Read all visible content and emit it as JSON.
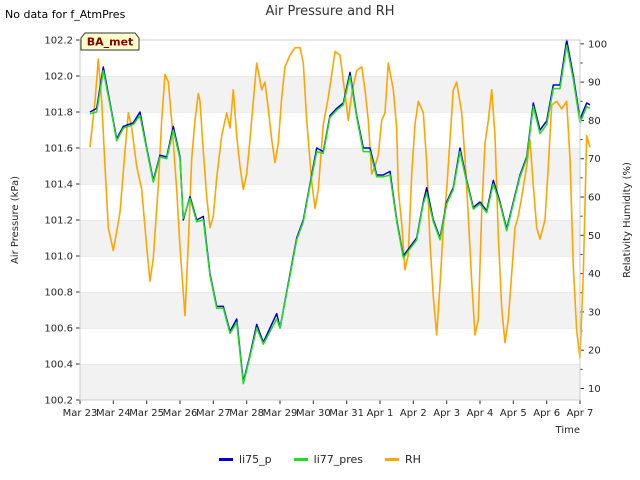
{
  "header": {
    "nodata_text": "No data for f_AtmPres"
  },
  "chart_data": {
    "type": "line",
    "title": "Air Pressure and RH",
    "badge": "BA_met",
    "xlabel": "Time",
    "ylabel_left": "Air Pressure (kPa)",
    "ylabel_right": "Relativity Humidity (%)",
    "x_ticks": [
      "Mar 23",
      "Mar 24",
      "Mar 25",
      "Mar 26",
      "Mar 27",
      "Mar 28",
      "Mar 29",
      "Mar 30",
      "Mar 31",
      "Apr 1",
      "Apr 2",
      "Apr 3",
      "Apr 4",
      "Apr 5",
      "Apr 6",
      "Apr 7"
    ],
    "x_range_days": [
      0,
      15
    ],
    "ylim_left": [
      100.2,
      102.2
    ],
    "yticks_left": [
      "100.2",
      "100.4",
      "100.6",
      "100.8",
      "101.0",
      "101.2",
      "101.4",
      "101.6",
      "101.8",
      "102.0",
      "102.2"
    ],
    "ylim_right": [
      7,
      101
    ],
    "yticks_right": [
      "10",
      "20",
      "30",
      "40",
      "50",
      "60",
      "70",
      "80",
      "90",
      "100"
    ],
    "grid": "horizontal bands",
    "legend_position": "bottom-center",
    "series": [
      {
        "name": "li75_p",
        "axis": "left",
        "color": "#0000cc",
        "points": [
          [
            0.3,
            101.8
          ],
          [
            0.5,
            101.82
          ],
          [
            0.7,
            102.05
          ],
          [
            0.9,
            101.85
          ],
          [
            1.1,
            101.65
          ],
          [
            1.3,
            101.72
          ],
          [
            1.6,
            101.74
          ],
          [
            1.8,
            101.8
          ],
          [
            2.0,
            101.6
          ],
          [
            2.2,
            101.42
          ],
          [
            2.4,
            101.56
          ],
          [
            2.6,
            101.55
          ],
          [
            2.8,
            101.72
          ],
          [
            3.0,
            101.55
          ],
          [
            3.1,
            101.2
          ],
          [
            3.3,
            101.33
          ],
          [
            3.5,
            101.2
          ],
          [
            3.7,
            101.22
          ],
          [
            3.9,
            100.9
          ],
          [
            4.1,
            100.72
          ],
          [
            4.3,
            100.72
          ],
          [
            4.5,
            100.58
          ],
          [
            4.7,
            100.65
          ],
          [
            4.9,
            100.3
          ],
          [
            5.1,
            100.45
          ],
          [
            5.3,
            100.62
          ],
          [
            5.5,
            100.52
          ],
          [
            5.7,
            100.6
          ],
          [
            5.9,
            100.68
          ],
          [
            6.0,
            100.6
          ],
          [
            6.3,
            100.9
          ],
          [
            6.5,
            101.1
          ],
          [
            6.7,
            101.2
          ],
          [
            6.9,
            101.4
          ],
          [
            7.1,
            101.6
          ],
          [
            7.3,
            101.58
          ],
          [
            7.5,
            101.78
          ],
          [
            7.7,
            101.82
          ],
          [
            7.9,
            101.85
          ],
          [
            8.1,
            102.02
          ],
          [
            8.3,
            101.78
          ],
          [
            8.5,
            101.6
          ],
          [
            8.7,
            101.6
          ],
          [
            8.9,
            101.45
          ],
          [
            9.1,
            101.45
          ],
          [
            9.3,
            101.47
          ],
          [
            9.5,
            101.2
          ],
          [
            9.7,
            101.0
          ],
          [
            9.9,
            101.05
          ],
          [
            10.1,
            101.1
          ],
          [
            10.3,
            101.3
          ],
          [
            10.4,
            101.38
          ],
          [
            10.6,
            101.2
          ],
          [
            10.8,
            101.1
          ],
          [
            11.0,
            101.3
          ],
          [
            11.2,
            101.38
          ],
          [
            11.4,
            101.6
          ],
          [
            11.6,
            101.42
          ],
          [
            11.8,
            101.27
          ],
          [
            12.0,
            101.3
          ],
          [
            12.2,
            101.25
          ],
          [
            12.4,
            101.42
          ],
          [
            12.6,
            101.3
          ],
          [
            12.8,
            101.15
          ],
          [
            13.0,
            101.3
          ],
          [
            13.2,
            101.45
          ],
          [
            13.4,
            101.55
          ],
          [
            13.6,
            101.85
          ],
          [
            13.8,
            101.7
          ],
          [
            14.0,
            101.75
          ],
          [
            14.2,
            101.95
          ],
          [
            14.4,
            101.95
          ],
          [
            14.6,
            102.2
          ],
          [
            14.8,
            102.0
          ],
          [
            15.0,
            101.76
          ],
          [
            15.2,
            101.85
          ],
          [
            15.3,
            101.84
          ]
        ]
      },
      {
        "name": "li77_pres",
        "axis": "left",
        "color": "#22dd22",
        "points": [
          [
            0.3,
            101.79
          ],
          [
            0.5,
            101.8
          ],
          [
            0.7,
            102.03
          ],
          [
            0.9,
            101.84
          ],
          [
            1.1,
            101.64
          ],
          [
            1.3,
            101.71
          ],
          [
            1.6,
            101.73
          ],
          [
            1.8,
            101.78
          ],
          [
            2.0,
            101.59
          ],
          [
            2.2,
            101.41
          ],
          [
            2.4,
            101.55
          ],
          [
            2.6,
            101.54
          ],
          [
            2.8,
            101.7
          ],
          [
            3.0,
            101.54
          ],
          [
            3.1,
            101.21
          ],
          [
            3.3,
            101.32
          ],
          [
            3.5,
            101.19
          ],
          [
            3.7,
            101.2
          ],
          [
            3.9,
            100.89
          ],
          [
            4.1,
            100.71
          ],
          [
            4.3,
            100.71
          ],
          [
            4.5,
            100.57
          ],
          [
            4.7,
            100.63
          ],
          [
            4.9,
            100.29
          ],
          [
            5.1,
            100.44
          ],
          [
            5.3,
            100.6
          ],
          [
            5.5,
            100.51
          ],
          [
            5.7,
            100.58
          ],
          [
            5.9,
            100.65
          ],
          [
            6.0,
            100.6
          ],
          [
            6.3,
            100.89
          ],
          [
            6.5,
            101.09
          ],
          [
            6.7,
            101.19
          ],
          [
            6.9,
            101.39
          ],
          [
            7.1,
            101.58
          ],
          [
            7.3,
            101.57
          ],
          [
            7.5,
            101.77
          ],
          [
            7.7,
            101.81
          ],
          [
            7.9,
            101.84
          ],
          [
            8.1,
            102.0
          ],
          [
            8.3,
            101.77
          ],
          [
            8.5,
            101.58
          ],
          [
            8.7,
            101.58
          ],
          [
            8.9,
            101.44
          ],
          [
            9.1,
            101.44
          ],
          [
            9.3,
            101.45
          ],
          [
            9.5,
            101.19
          ],
          [
            9.7,
            100.99
          ],
          [
            9.9,
            101.04
          ],
          [
            10.1,
            101.09
          ],
          [
            10.3,
            101.29
          ],
          [
            10.4,
            101.35
          ],
          [
            10.6,
            101.19
          ],
          [
            10.8,
            101.09
          ],
          [
            11.0,
            101.29
          ],
          [
            11.2,
            101.37
          ],
          [
            11.4,
            101.58
          ],
          [
            11.6,
            101.41
          ],
          [
            11.8,
            101.26
          ],
          [
            12.0,
            101.29
          ],
          [
            12.2,
            101.24
          ],
          [
            12.4,
            101.4
          ],
          [
            12.6,
            101.29
          ],
          [
            12.8,
            101.14
          ],
          [
            13.0,
            101.29
          ],
          [
            13.2,
            101.44
          ],
          [
            13.4,
            101.54
          ],
          [
            13.6,
            101.83
          ],
          [
            13.8,
            101.68
          ],
          [
            14.0,
            101.73
          ],
          [
            14.2,
            101.93
          ],
          [
            14.4,
            101.93
          ],
          [
            14.6,
            102.17
          ],
          [
            14.8,
            101.98
          ],
          [
            15.0,
            101.74
          ],
          [
            15.2,
            101.83
          ],
          [
            15.3,
            101.82
          ]
        ]
      },
      {
        "name": "RH",
        "axis": "right",
        "color": "#ffa500",
        "points": [
          [
            0.3,
            73
          ],
          [
            0.45,
            85
          ],
          [
            0.55,
            96
          ],
          [
            0.65,
            85
          ],
          [
            0.75,
            68
          ],
          [
            0.85,
            52
          ],
          [
            1.0,
            46
          ],
          [
            1.1,
            51
          ],
          [
            1.2,
            56
          ],
          [
            1.35,
            72
          ],
          [
            1.45,
            82
          ],
          [
            1.55,
            78
          ],
          [
            1.7,
            68
          ],
          [
            1.85,
            62
          ],
          [
            2.0,
            47
          ],
          [
            2.1,
            38
          ],
          [
            2.2,
            44
          ],
          [
            2.35,
            63
          ],
          [
            2.45,
            80
          ],
          [
            2.55,
            92
          ],
          [
            2.65,
            90
          ],
          [
            2.75,
            80
          ],
          [
            2.9,
            62
          ],
          [
            3.0,
            47
          ],
          [
            3.1,
            35
          ],
          [
            3.15,
            29
          ],
          [
            3.25,
            48
          ],
          [
            3.35,
            70
          ],
          [
            3.45,
            80
          ],
          [
            3.55,
            87
          ],
          [
            3.6,
            85
          ],
          [
            3.7,
            72
          ],
          [
            3.8,
            60
          ],
          [
            3.9,
            52
          ],
          [
            4.0,
            55
          ],
          [
            4.1,
            65
          ],
          [
            4.25,
            76
          ],
          [
            4.4,
            82
          ],
          [
            4.5,
            78
          ],
          [
            4.6,
            88
          ],
          [
            4.7,
            76
          ],
          [
            4.8,
            68
          ],
          [
            4.9,
            62
          ],
          [
            5.0,
            66
          ],
          [
            5.1,
            75
          ],
          [
            5.2,
            85
          ],
          [
            5.3,
            95
          ],
          [
            5.45,
            88
          ],
          [
            5.55,
            90
          ],
          [
            5.65,
            83
          ],
          [
            5.75,
            75
          ],
          [
            5.85,
            69
          ],
          [
            5.95,
            74
          ],
          [
            6.05,
            86
          ],
          [
            6.15,
            94
          ],
          [
            6.3,
            97
          ],
          [
            6.45,
            99
          ],
          [
            6.6,
            99
          ],
          [
            6.7,
            95
          ],
          [
            6.8,
            80
          ],
          [
            6.95,
            64
          ],
          [
            7.05,
            57
          ],
          [
            7.15,
            62
          ],
          [
            7.3,
            79
          ],
          [
            7.45,
            86
          ],
          [
            7.55,
            92
          ],
          [
            7.65,
            98
          ],
          [
            7.8,
            97
          ],
          [
            7.95,
            87
          ],
          [
            8.05,
            80
          ],
          [
            8.15,
            87
          ],
          [
            8.3,
            93
          ],
          [
            8.45,
            94
          ],
          [
            8.55,
            88
          ],
          [
            8.65,
            80
          ],
          [
            8.75,
            66
          ],
          [
            8.85,
            68
          ],
          [
            8.95,
            71
          ],
          [
            9.05,
            80
          ],
          [
            9.15,
            82
          ],
          [
            9.25,
            95
          ],
          [
            9.4,
            88
          ],
          [
            9.5,
            78
          ],
          [
            9.55,
            62
          ],
          [
            9.65,
            53
          ],
          [
            9.75,
            41
          ],
          [
            9.85,
            45
          ],
          [
            9.95,
            66
          ],
          [
            10.05,
            79
          ],
          [
            10.15,
            85
          ],
          [
            10.3,
            82
          ],
          [
            10.4,
            69
          ],
          [
            10.5,
            48
          ],
          [
            10.6,
            34
          ],
          [
            10.7,
            24
          ],
          [
            10.8,
            37
          ],
          [
            10.9,
            52
          ],
          [
            11.0,
            62
          ],
          [
            11.1,
            75
          ],
          [
            11.2,
            88
          ],
          [
            11.3,
            90
          ],
          [
            11.45,
            82
          ],
          [
            11.55,
            70
          ],
          [
            11.65,
            55
          ],
          [
            11.75,
            38
          ],
          [
            11.85,
            24
          ],
          [
            11.95,
            28
          ],
          [
            12.05,
            56
          ],
          [
            12.15,
            74
          ],
          [
            12.25,
            80
          ],
          [
            12.35,
            88
          ],
          [
            12.45,
            76
          ],
          [
            12.55,
            50
          ],
          [
            12.65,
            31
          ],
          [
            12.75,
            22
          ],
          [
            12.85,
            28
          ],
          [
            12.95,
            40
          ],
          [
            13.05,
            52
          ],
          [
            13.15,
            55
          ],
          [
            13.25,
            60
          ],
          [
            13.4,
            68
          ],
          [
            13.5,
            75
          ],
          [
            13.6,
            63
          ],
          [
            13.7,
            52
          ],
          [
            13.8,
            49
          ],
          [
            13.95,
            54
          ],
          [
            14.05,
            68
          ],
          [
            14.15,
            84
          ],
          [
            14.3,
            85
          ],
          [
            14.45,
            83
          ],
          [
            14.6,
            85
          ],
          [
            14.7,
            70
          ],
          [
            14.8,
            42
          ],
          [
            14.9,
            25
          ],
          [
            15.0,
            18
          ],
          [
            15.1,
            40
          ],
          [
            15.2,
            76
          ],
          [
            15.3,
            73
          ]
        ]
      }
    ],
    "legend": [
      "li75_p",
      "li77_pres",
      "RH"
    ]
  }
}
